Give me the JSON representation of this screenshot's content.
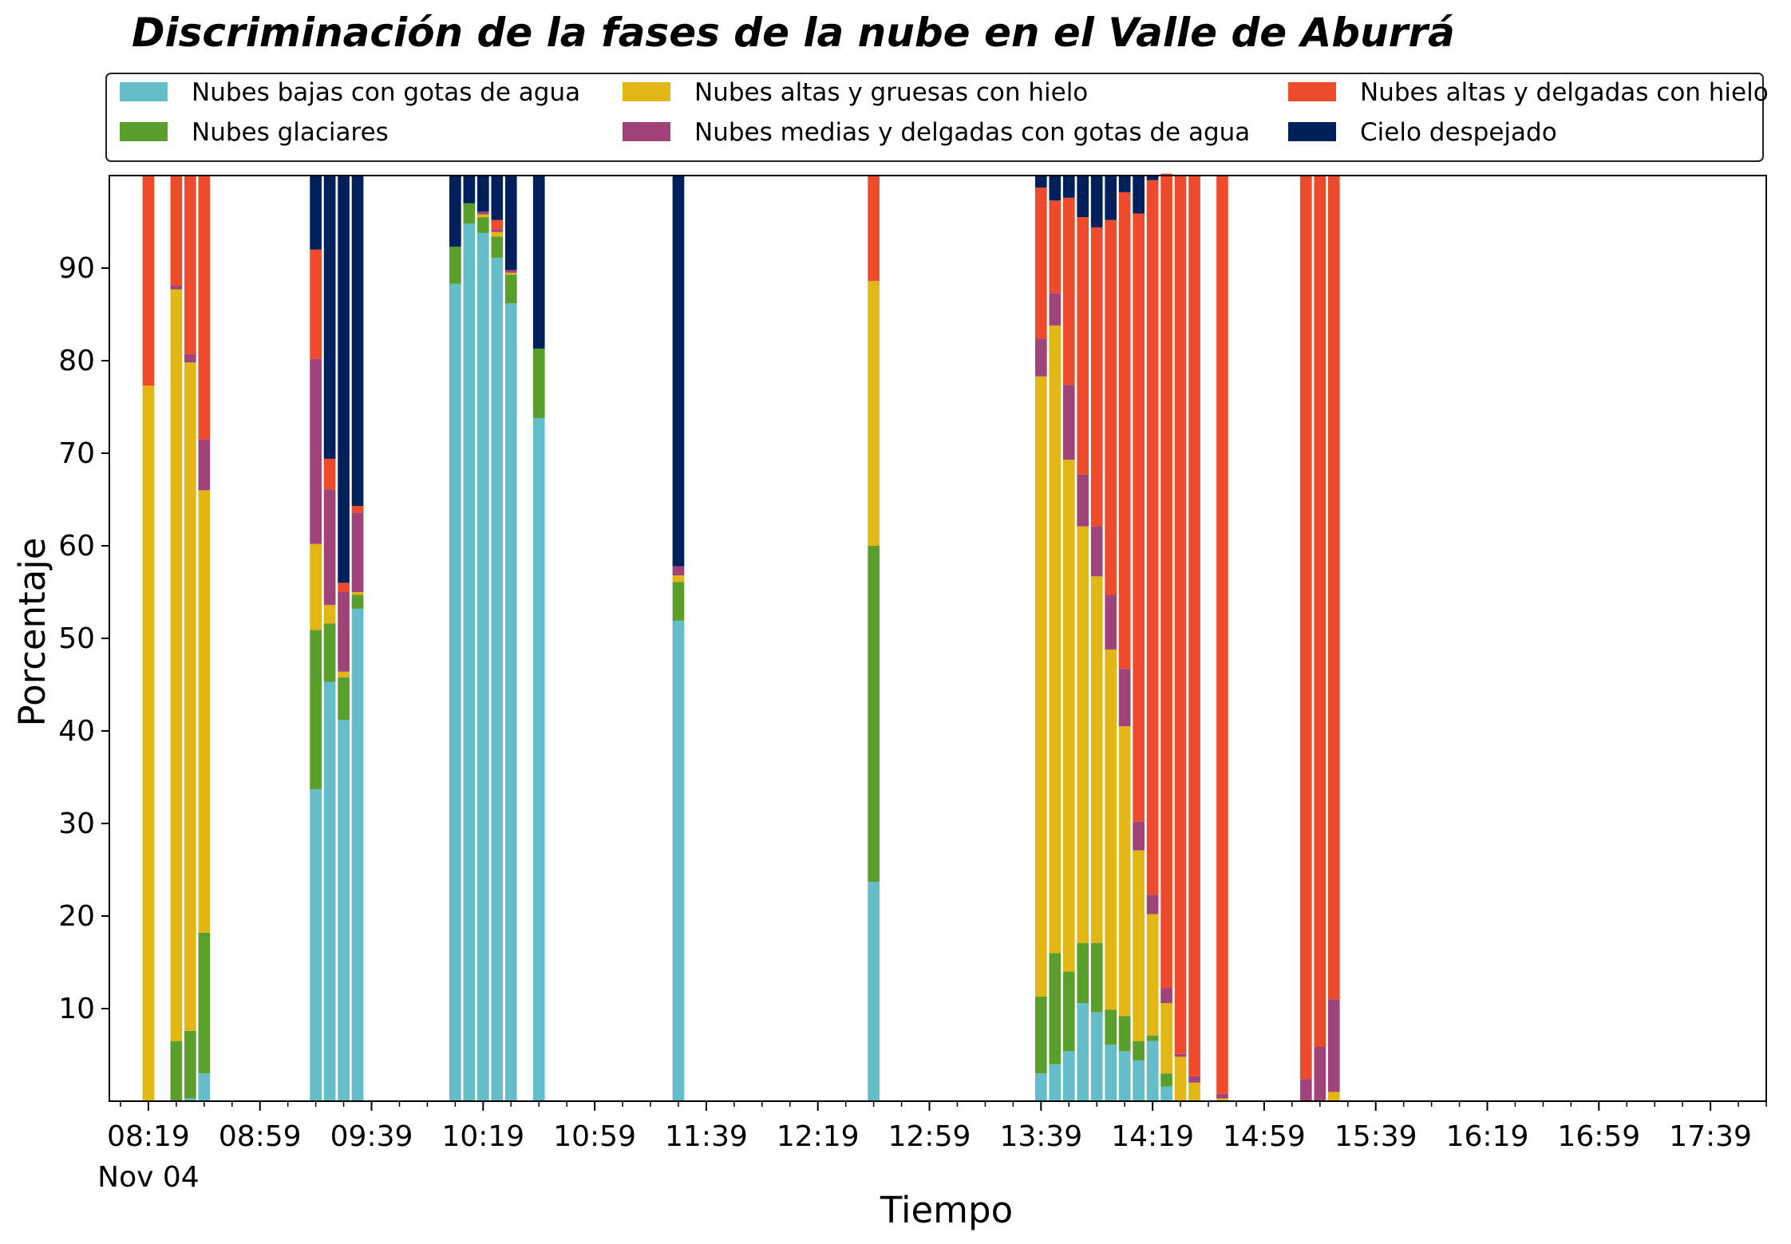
{
  "chart_data": {
    "type": "bar",
    "stacked": true,
    "title": "Discriminación de la fases de la nube en el Valle de Aburrá",
    "xlabel": "Tiempo",
    "ylabel": "Porcentaje",
    "ylim": [
      0,
      100
    ],
    "y_ticks": [
      10,
      20,
      30,
      40,
      50,
      60,
      70,
      80,
      90
    ],
    "x_tick_labels": [
      "08:19",
      "08:59",
      "09:39",
      "10:19",
      "10:59",
      "11:39",
      "12:19",
      "12:59",
      "13:39",
      "14:19",
      "14:59",
      "15:39",
      "16:19",
      "16:59",
      "17:39"
    ],
    "x_date_label": "Nov 04",
    "legend_location": "top, above plot",
    "grid": false,
    "series": [
      {
        "name": "Nubes bajas con gotas de agua",
        "color": "#64BDC9"
      },
      {
        "name": "Nubes glaciares",
        "color": "#5A9E2C"
      },
      {
        "name": "Nubes altas y gruesas con hielo",
        "color": "#E2B715"
      },
      {
        "name": "Nubes medias y delgadas con gotas de agua",
        "color": "#A04378"
      },
      {
        "name": "Nubes altas y delgadas con hielo",
        "color": "#EE4B2D"
      },
      {
        "name": "Cielo despejado",
        "color": "#00205C"
      }
    ],
    "bars": [
      {
        "time": "08:19",
        "values": [
          0,
          0,
          77.3,
          0,
          22.7,
          0
        ]
      },
      {
        "time": "08:29",
        "values": [
          0,
          6.5,
          81.2,
          0.4,
          11.9,
          0
        ]
      },
      {
        "time": "08:34",
        "values": [
          0.3,
          7.3,
          72.2,
          0.9,
          19.3,
          0
        ]
      },
      {
        "time": "08:39",
        "values": [
          3.0,
          15.2,
          47.8,
          5.5,
          28.5,
          0
        ]
      },
      {
        "time": "09:19",
        "values": [
          33.7,
          17.2,
          9.3,
          20.0,
          11.8,
          8.0
        ]
      },
      {
        "time": "09:24",
        "values": [
          45.3,
          6.3,
          2.0,
          12.5,
          3.3,
          30.6
        ]
      },
      {
        "time": "09:29",
        "values": [
          41.2,
          4.6,
          0.6,
          8.6,
          1.0,
          44.0
        ]
      },
      {
        "time": "09:34",
        "values": [
          53.2,
          1.5,
          0.3,
          8.6,
          0.7,
          35.7
        ]
      },
      {
        "time": "10:09",
        "values": [
          88.3,
          4.0,
          0,
          0,
          0,
          7.7
        ]
      },
      {
        "time": "10:14",
        "values": [
          94.8,
          2.2,
          0,
          0,
          0,
          3.0
        ]
      },
      {
        "time": "10:19",
        "values": [
          93.8,
          1.7,
          0.3,
          0.3,
          0,
          3.9
        ]
      },
      {
        "time": "10:24",
        "values": [
          91.1,
          2.3,
          0.5,
          0.3,
          1.0,
          4.8
        ]
      },
      {
        "time": "10:29",
        "values": [
          86.2,
          3.1,
          0.2,
          0.3,
          0,
          10.2
        ]
      },
      {
        "time": "10:39",
        "values": [
          73.8,
          7.5,
          0,
          0,
          0,
          18.7
        ]
      },
      {
        "time": "11:29",
        "values": [
          51.9,
          4.2,
          0.7,
          1.0,
          0,
          42.2
        ]
      },
      {
        "time": "12:39",
        "values": [
          23.7,
          36.3,
          28.6,
          0,
          11.4,
          0
        ]
      },
      {
        "time": "13:39",
        "values": [
          3.0,
          8.3,
          67.0,
          4.1,
          16.3,
          1.3
        ]
      },
      {
        "time": "13:44",
        "values": [
          4.0,
          12.0,
          67.8,
          3.5,
          10.0,
          2.7
        ]
      },
      {
        "time": "13:49",
        "values": [
          5.4,
          8.6,
          55.3,
          8.1,
          20.2,
          2.4
        ]
      },
      {
        "time": "13:54",
        "values": [
          10.6,
          6.5,
          45.0,
          5.6,
          27.8,
          4.5
        ]
      },
      {
        "time": "13:59",
        "values": [
          9.6,
          7.5,
          39.6,
          5.4,
          32.3,
          5.6
        ]
      },
      {
        "time": "14:04",
        "values": [
          6.1,
          3.8,
          38.9,
          5.9,
          40.5,
          4.8
        ]
      },
      {
        "time": "14:09",
        "values": [
          5.4,
          3.8,
          31.3,
          6.2,
          51.5,
          1.8
        ]
      },
      {
        "time": "14:14",
        "values": [
          4.4,
          2.1,
          20.6,
          3.1,
          65.7,
          4.1
        ]
      },
      {
        "time": "14:19",
        "values": [
          6.5,
          0.6,
          13.1,
          2.1,
          77.2,
          0.5
        ]
      },
      {
        "time": "14:24",
        "values": [
          1.6,
          1.4,
          7.6,
          1.6,
          88.0,
          0
        ]
      },
      {
        "time": "14:29",
        "values": [
          0,
          0,
          4.8,
          0.3,
          94.9,
          0
        ]
      },
      {
        "time": "14:34",
        "values": [
          0,
          0,
          2.0,
          0.7,
          97.3,
          0
        ]
      },
      {
        "time": "14:44",
        "values": [
          0,
          0,
          0.3,
          0.5,
          99.2,
          0
        ]
      },
      {
        "time": "15:14",
        "values": [
          0,
          0,
          0,
          2.4,
          97.6,
          0
        ]
      },
      {
        "time": "15:19",
        "values": [
          0,
          0,
          0,
          5.9,
          94.1,
          0
        ]
      },
      {
        "time": "15:24",
        "values": [
          0,
          0,
          1.0,
          10.0,
          89.0,
          0
        ]
      }
    ]
  }
}
